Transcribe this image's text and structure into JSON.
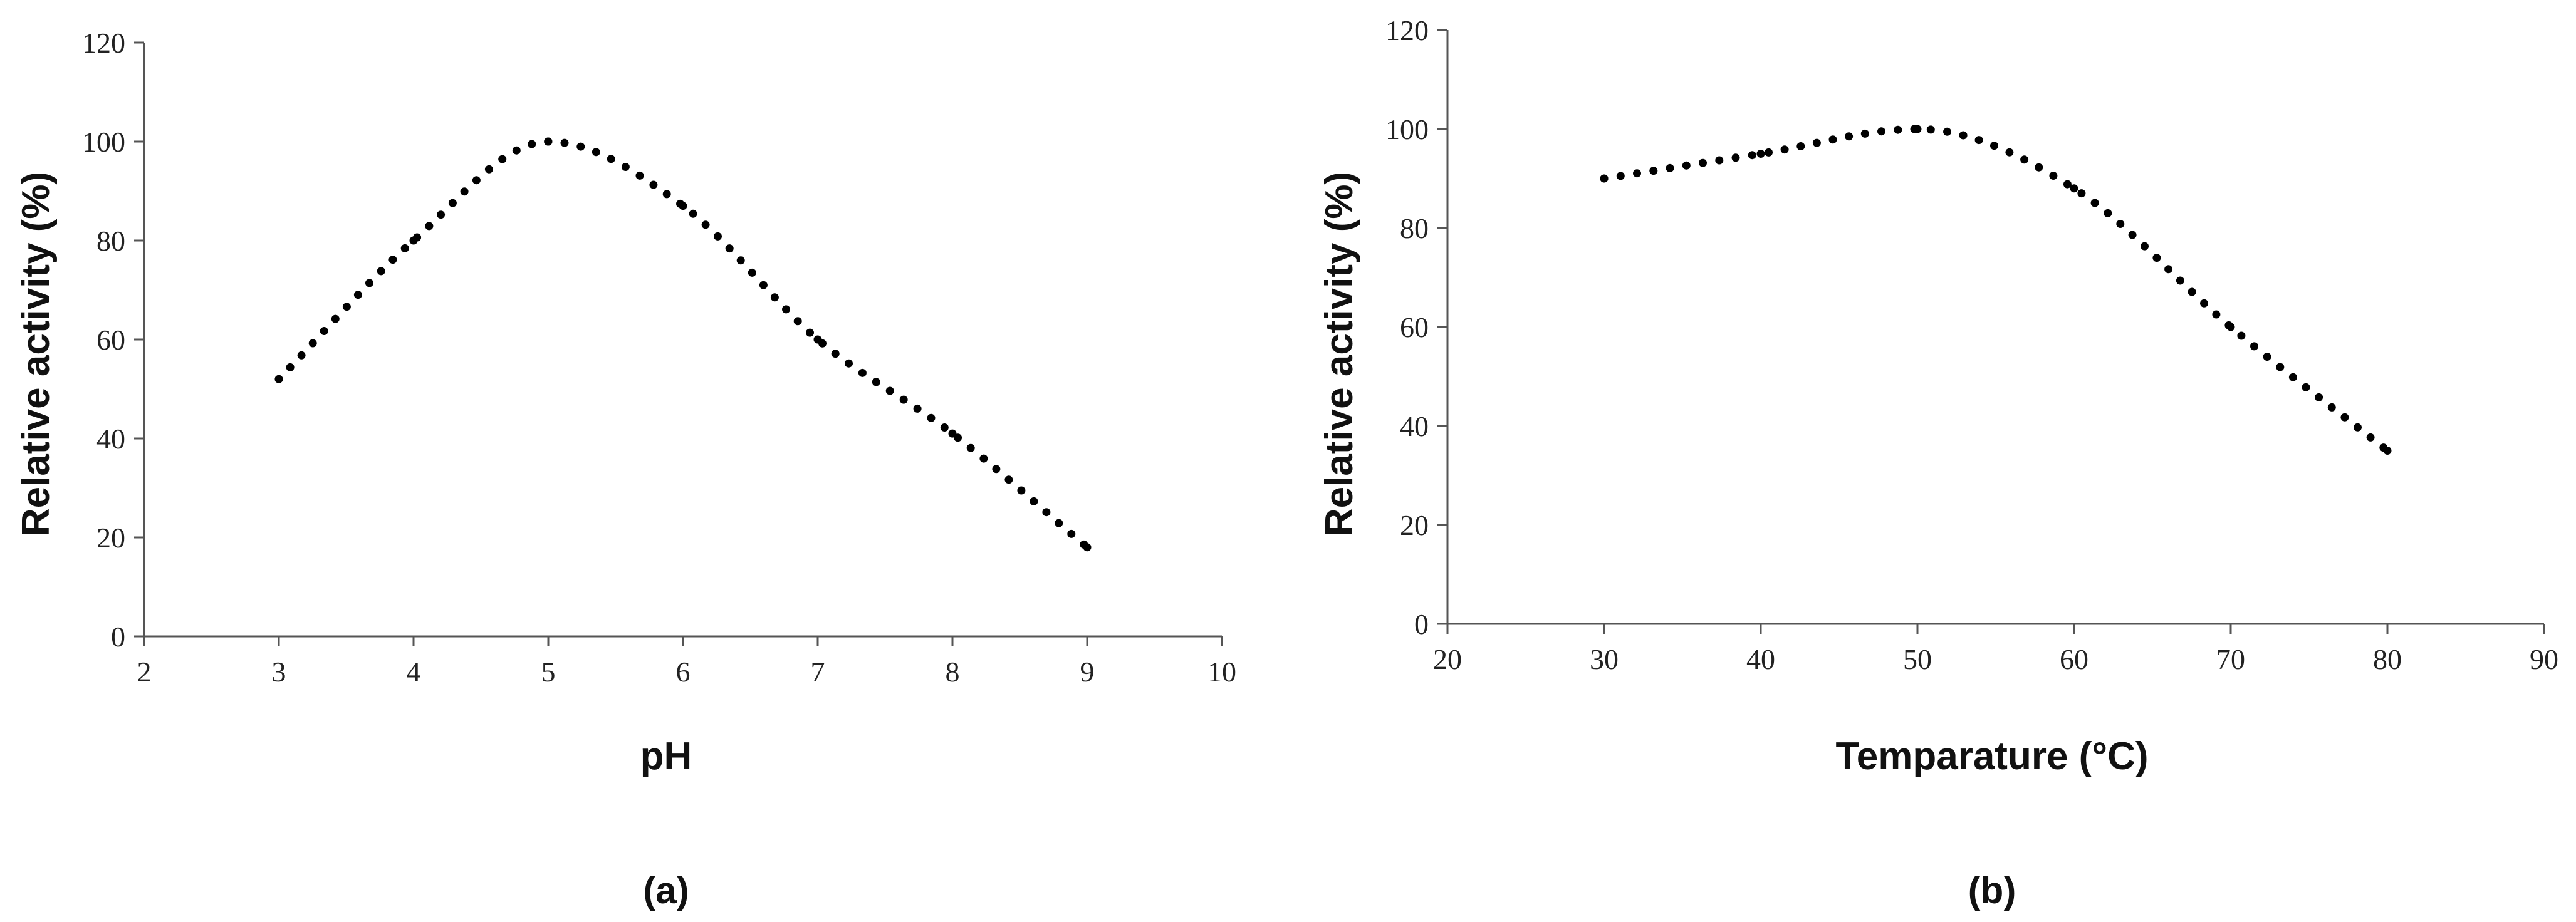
{
  "chart_data": [
    {
      "type": "line",
      "line_style": "dotted",
      "panel_label": "(a)",
      "title": "",
      "xlabel": "pH",
      "ylabel": "Relative activity (%)",
      "xlim": [
        2,
        10
      ],
      "ylim": [
        0,
        120
      ],
      "xticks": [
        2,
        3,
        4,
        5,
        6,
        7,
        8,
        9,
        10
      ],
      "yticks": [
        0,
        20,
        40,
        60,
        80,
        100,
        120
      ],
      "grid": false,
      "series": [
        {
          "x": [
            3,
            4,
            5,
            6,
            7,
            8,
            9
          ],
          "y": [
            52,
            80,
            100,
            87,
            60,
            41,
            18
          ]
        }
      ]
    },
    {
      "type": "line",
      "line_style": "dotted",
      "panel_label": "(b)",
      "title": "",
      "xlabel": "Temparature (°C)",
      "ylabel": "Relative activity (%)",
      "xlim": [
        20,
        90
      ],
      "ylim": [
        0,
        120
      ],
      "xticks": [
        20,
        30,
        40,
        50,
        60,
        70,
        80,
        90
      ],
      "yticks": [
        0,
        20,
        40,
        60,
        80,
        100,
        120
      ],
      "grid": false,
      "series": [
        {
          "x": [
            30,
            40,
            50,
            60,
            70,
            80
          ],
          "y": [
            90,
            95,
            100,
            88,
            60,
            35
          ]
        }
      ]
    }
  ],
  "colors": {
    "axis": "#555555",
    "dots": "#000000",
    "text": "#111111"
  }
}
